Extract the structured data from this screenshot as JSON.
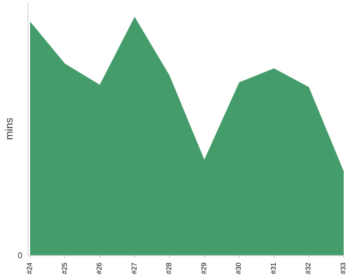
{
  "chart_data": {
    "type": "area",
    "categories": [
      "#24",
      "#25",
      "#26",
      "#27",
      "#28",
      "#29",
      "#30",
      "#31",
      "#32",
      "#33"
    ],
    "series": [
      {
        "values": [
          100,
          82,
          73,
          102,
          77,
          41,
          74,
          80,
          72,
          36
        ]
      }
    ],
    "ylabel": "mins",
    "yticks": [
      "0"
    ],
    "ylim": [
      0,
      108
    ],
    "fill_color": "#449c6b",
    "axis_color": "#c8c8c8",
    "grid": false
  }
}
